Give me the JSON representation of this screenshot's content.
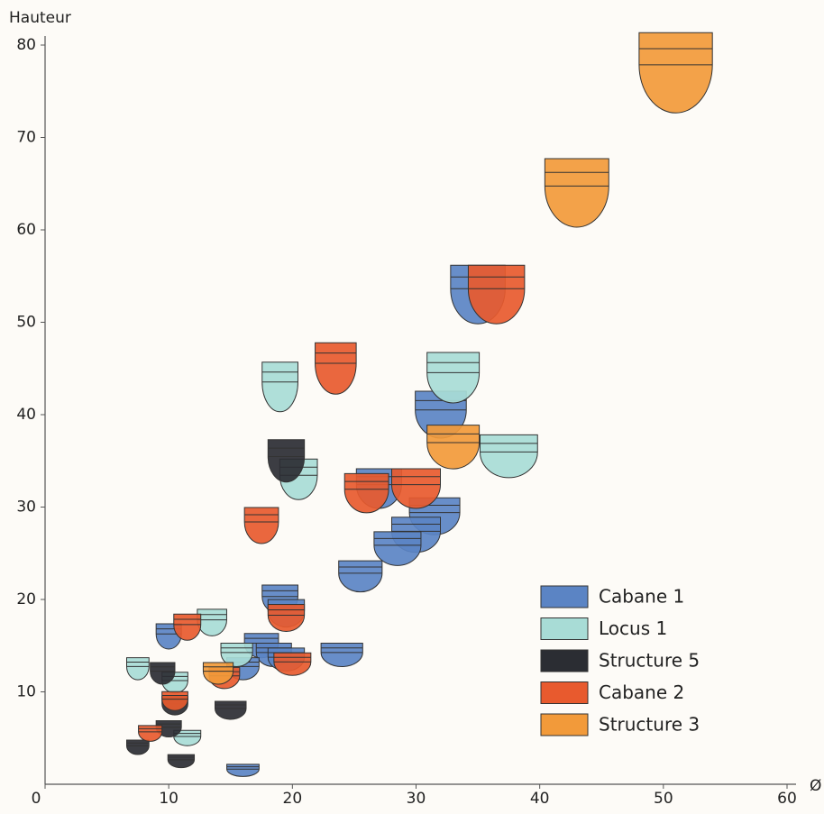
{
  "chart_data": {
    "type": "scatter",
    "x_label": "Ø",
    "y_label": "Hauteur",
    "xlim": [
      0,
      60
    ],
    "ylim": [
      0,
      80
    ],
    "xticks": [
      0,
      10,
      20,
      30,
      40,
      50,
      60
    ],
    "yticks": [
      10,
      20,
      30,
      40,
      50,
      60,
      70,
      80
    ],
    "legend": "lower right",
    "series": [
      {
        "name": "Cabane 1",
        "color": "#5b84c4",
        "x": [
          35,
          32,
          27,
          31.5,
          30,
          28.5,
          25.5,
          19,
          19.5,
          17.5,
          18.5,
          16,
          24,
          10,
          19.5,
          16
        ],
        "values": [
          53,
          40,
          32,
          29,
          27,
          25.5,
          22.5,
          20,
          18.5,
          15,
          14,
          12.5,
          14,
          16,
          13.5,
          1.5
        ]
      },
      {
        "name": "Locus 1",
        "color": "#a8dcd6",
        "x": [
          19,
          20.5,
          33,
          37.5,
          13.5,
          15.5,
          10.5,
          7.5,
          11.5
        ],
        "values": [
          43,
          33,
          44,
          35.5,
          17.5,
          14,
          11,
          12.5,
          5
        ]
      },
      {
        "name": "Structure 5",
        "color": "#2b2d33",
        "x": [
          19.5,
          9.5,
          10.5,
          15,
          7.5,
          10,
          11
        ],
        "values": [
          35,
          12,
          8.5,
          8,
          4,
          6,
          2.5
        ]
      },
      {
        "name": "Cabane 2",
        "color": "#e85a2e",
        "x": [
          23.5,
          26,
          30,
          17.5,
          36.5,
          19.5,
          14.5,
          11.5,
          20,
          8.5,
          10.5
        ],
        "values": [
          45,
          31.5,
          32,
          28,
          53,
          18,
          11.5,
          17,
          13,
          5.5,
          9
        ]
      },
      {
        "name": "Structure 3",
        "color": "#f29a3a",
        "x": [
          51,
          43,
          33,
          14
        ],
        "values": [
          77,
          64,
          36.5,
          12
        ]
      }
    ]
  }
}
